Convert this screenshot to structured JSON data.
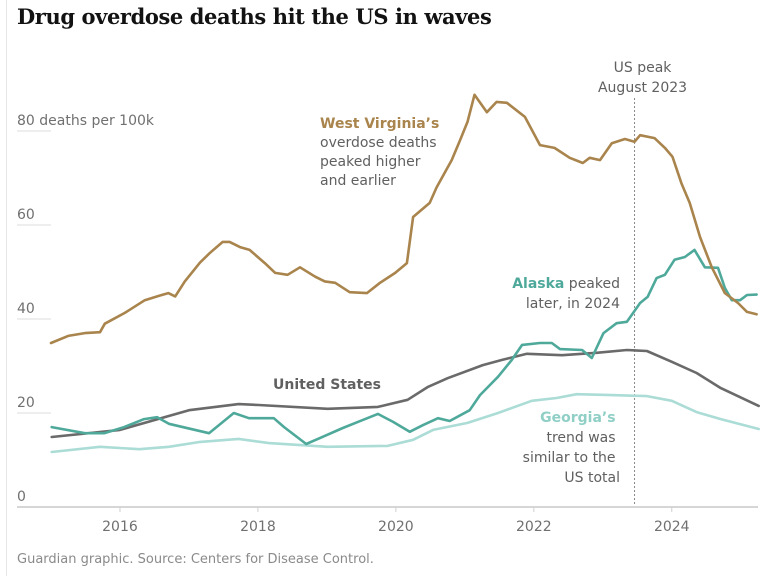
{
  "title": "Drug overdose deaths hit the US in waves",
  "source": "Guardian graphic. Source: Centers for Disease Control.",
  "colors": {
    "west_virginia": "#a9844c",
    "alaska": "#4fa99b",
    "georgia": "#abdcd6",
    "united_states": "#6a6a6a"
  },
  "chart_data": {
    "type": "line",
    "ylabel": "deaths per 100k",
    "ylim": [
      0,
      90
    ],
    "xlim": [
      2015,
      2025.25
    ],
    "y_ticks": [
      {
        "value": 0,
        "label": "0"
      },
      {
        "value": 20,
        "label": "20"
      },
      {
        "value": 40,
        "label": "40"
      },
      {
        "value": 60,
        "label": "60"
      },
      {
        "value": 80,
        "label": "80 deaths per 100k"
      }
    ],
    "x_ticks": [
      {
        "value": 2016,
        "label": "2016"
      },
      {
        "value": 2018,
        "label": "2018"
      },
      {
        "value": 2020,
        "label": "2020"
      },
      {
        "value": 2022,
        "label": "2022"
      },
      {
        "value": 2024,
        "label": "2024"
      }
    ],
    "grid": "y-short-left",
    "series": [
      {
        "key": "georgia",
        "color": "#abdcd6",
        "points": [
          [
            2015.01,
            11.7
          ],
          [
            2015.71,
            12.8
          ],
          [
            2016.28,
            12.3
          ],
          [
            2016.71,
            12.8
          ],
          [
            2017.14,
            13.8
          ],
          [
            2017.72,
            14.5
          ],
          [
            2018.16,
            13.6
          ],
          [
            2019.01,
            12.8
          ],
          [
            2019.88,
            13.0
          ],
          [
            2020.25,
            14.3
          ],
          [
            2020.54,
            16.4
          ],
          [
            2021.04,
            17.9
          ],
          [
            2021.48,
            20.0
          ],
          [
            2021.97,
            22.6
          ],
          [
            2022.33,
            23.2
          ],
          [
            2022.62,
            24.0
          ],
          [
            2023.13,
            23.8
          ],
          [
            2023.64,
            23.6
          ],
          [
            2024.0,
            22.6
          ],
          [
            2024.36,
            20.2
          ],
          [
            2024.71,
            18.7
          ],
          [
            2025.26,
            16.6
          ]
        ]
      },
      {
        "key": "united_states",
        "color": "#6a6a6a",
        "points": [
          [
            2015.01,
            14.9
          ],
          [
            2016.0,
            16.4
          ],
          [
            2017.0,
            20.6
          ],
          [
            2017.72,
            21.9
          ],
          [
            2018.01,
            21.7
          ],
          [
            2019.01,
            20.9
          ],
          [
            2019.74,
            21.3
          ],
          [
            2020.17,
            22.8
          ],
          [
            2020.46,
            25.5
          ],
          [
            2020.75,
            27.4
          ],
          [
            2021.26,
            30.2
          ],
          [
            2021.54,
            31.3
          ],
          [
            2021.9,
            32.6
          ],
          [
            2022.41,
            32.3
          ],
          [
            2022.91,
            32.8
          ],
          [
            2023.35,
            33.4
          ],
          [
            2023.64,
            33.2
          ],
          [
            2024.0,
            30.9
          ],
          [
            2024.36,
            28.5
          ],
          [
            2024.71,
            25.3
          ],
          [
            2025.26,
            21.5
          ]
        ]
      },
      {
        "key": "alaska",
        "color": "#4fa99b",
        "points": [
          [
            2015.01,
            17.0
          ],
          [
            2015.49,
            15.7
          ],
          [
            2015.77,
            15.7
          ],
          [
            2016.06,
            17.0
          ],
          [
            2016.35,
            18.7
          ],
          [
            2016.54,
            19.1
          ],
          [
            2016.71,
            17.7
          ],
          [
            2017.29,
            15.7
          ],
          [
            2017.65,
            20.0
          ],
          [
            2017.87,
            18.9
          ],
          [
            2018.23,
            18.9
          ],
          [
            2018.38,
            17.0
          ],
          [
            2018.7,
            13.4
          ],
          [
            2018.87,
            14.5
          ],
          [
            2019.23,
            16.8
          ],
          [
            2019.45,
            18.1
          ],
          [
            2019.74,
            19.8
          ],
          [
            2019.96,
            18.1
          ],
          [
            2020.2,
            16.0
          ],
          [
            2020.39,
            17.4
          ],
          [
            2020.61,
            18.9
          ],
          [
            2020.78,
            18.3
          ],
          [
            2021.07,
            20.6
          ],
          [
            2021.22,
            23.8
          ],
          [
            2021.48,
            27.7
          ],
          [
            2021.68,
            31.3
          ],
          [
            2021.83,
            34.5
          ],
          [
            2022.09,
            34.9
          ],
          [
            2022.26,
            34.9
          ],
          [
            2022.38,
            33.6
          ],
          [
            2022.7,
            33.4
          ],
          [
            2022.84,
            31.7
          ],
          [
            2023.01,
            37.0
          ],
          [
            2023.2,
            39.1
          ],
          [
            2023.35,
            39.4
          ],
          [
            2023.54,
            43.4
          ],
          [
            2023.65,
            44.7
          ],
          [
            2023.78,
            48.7
          ],
          [
            2023.9,
            49.4
          ],
          [
            2024.04,
            52.6
          ],
          [
            2024.19,
            53.2
          ],
          [
            2024.33,
            54.7
          ],
          [
            2024.48,
            51.0
          ],
          [
            2024.67,
            50.9
          ],
          [
            2024.77,
            46.6
          ],
          [
            2024.87,
            44.0
          ],
          [
            2024.99,
            44.0
          ],
          [
            2025.09,
            45.1
          ],
          [
            2025.23,
            45.2
          ]
        ]
      },
      {
        "key": "west_virginia",
        "color": "#a9844c",
        "points": [
          [
            2015.0,
            34.9
          ],
          [
            2015.25,
            36.4
          ],
          [
            2015.49,
            37.0
          ],
          [
            2015.71,
            37.2
          ],
          [
            2015.78,
            39.0
          ],
          [
            2016.07,
            41.3
          ],
          [
            2016.36,
            44.0
          ],
          [
            2016.58,
            45.0
          ],
          [
            2016.7,
            45.5
          ],
          [
            2016.8,
            44.8
          ],
          [
            2016.94,
            48.0
          ],
          [
            2017.16,
            52.0
          ],
          [
            2017.3,
            54.0
          ],
          [
            2017.49,
            56.4
          ],
          [
            2017.59,
            56.4
          ],
          [
            2017.74,
            55.3
          ],
          [
            2017.88,
            54.7
          ],
          [
            2018.1,
            51.9
          ],
          [
            2018.25,
            49.8
          ],
          [
            2018.43,
            49.4
          ],
          [
            2018.61,
            51.0
          ],
          [
            2018.83,
            49.0
          ],
          [
            2018.97,
            48.0
          ],
          [
            2019.12,
            47.7
          ],
          [
            2019.33,
            45.7
          ],
          [
            2019.58,
            45.5
          ],
          [
            2019.77,
            47.7
          ],
          [
            2019.99,
            49.8
          ],
          [
            2020.16,
            51.9
          ],
          [
            2020.25,
            61.7
          ],
          [
            2020.49,
            64.7
          ],
          [
            2020.59,
            68.0
          ],
          [
            2020.81,
            73.8
          ],
          [
            2020.93,
            78.0
          ],
          [
            2021.04,
            82.0
          ],
          [
            2021.14,
            87.7
          ],
          [
            2021.32,
            84.0
          ],
          [
            2021.46,
            86.2
          ],
          [
            2021.61,
            86.0
          ],
          [
            2021.87,
            83.0
          ],
          [
            2022.09,
            77.0
          ],
          [
            2022.3,
            76.4
          ],
          [
            2022.52,
            74.3
          ],
          [
            2022.71,
            73.2
          ],
          [
            2022.81,
            74.3
          ],
          [
            2022.96,
            73.8
          ],
          [
            2023.13,
            77.4
          ],
          [
            2023.32,
            78.3
          ],
          [
            2023.46,
            77.7
          ],
          [
            2023.54,
            79.1
          ],
          [
            2023.75,
            78.5
          ],
          [
            2023.9,
            76.4
          ],
          [
            2024.01,
            74.5
          ],
          [
            2024.14,
            68.9
          ],
          [
            2024.26,
            64.7
          ],
          [
            2024.41,
            57.4
          ],
          [
            2024.58,
            51.0
          ],
          [
            2024.77,
            45.5
          ],
          [
            2024.96,
            43.4
          ],
          [
            2025.09,
            41.5
          ],
          [
            2025.23,
            41.0
          ]
        ]
      }
    ],
    "peak_marker": {
      "value": 2023.46,
      "label_lines": [
        "US peak",
        "August 2023"
      ]
    },
    "annotations": {
      "west_virginia": {
        "bold": "West Virginia’s",
        "lines": [
          "overdose deaths",
          "peaked higher",
          "and earlier"
        ]
      },
      "alaska": {
        "bold": "Alaska",
        "rest": " peaked",
        "line2": "later, in 2024"
      },
      "united_states": {
        "bold": "United States"
      },
      "georgia": {
        "bold": "Georgia’s",
        "lines": [
          "trend was",
          "similar to the",
          "US total"
        ]
      }
    }
  }
}
